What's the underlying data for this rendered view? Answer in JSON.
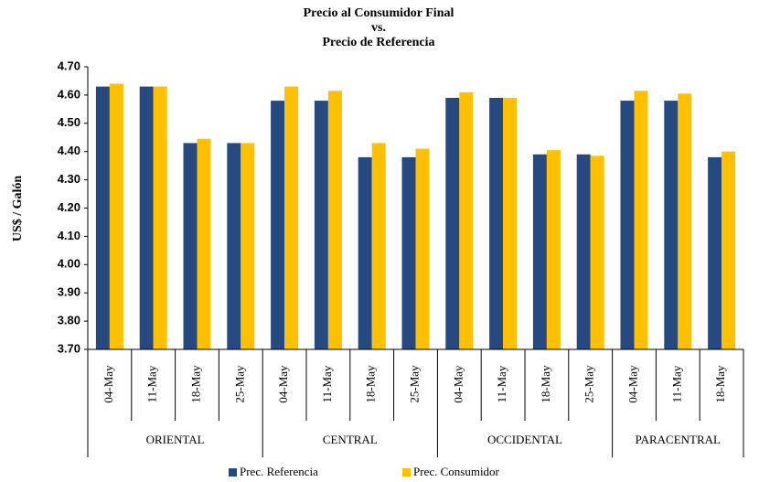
{
  "chart_data": {
    "type": "bar",
    "title": [
      "Precio al Consumidor Final",
      "vs.",
      "Precio de Referencia"
    ],
    "y_label": "US$ / Galón",
    "categories": [
      "04-May",
      "11-May",
      "18-May",
      "25-May",
      "04-May",
      "11-May",
      "18-May",
      "25-May",
      "04-May",
      "11-May",
      "18-May",
      "25-May",
      "04-May",
      "11-May",
      "18-May"
    ],
    "groups": [
      {
        "name": "ORIENTAL",
        "size": 4
      },
      {
        "name": "CENTRAL",
        "size": 4
      },
      {
        "name": "OCCIDENTAL",
        "size": 4
      },
      {
        "name": "PARACENTRAL",
        "size": 3
      }
    ],
    "series": [
      {
        "name": "Prec. Referencia",
        "color": "#264a7f",
        "values": [
          4.63,
          4.63,
          4.43,
          4.43,
          4.58,
          4.58,
          4.38,
          4.38,
          4.59,
          4.59,
          4.39,
          4.39,
          4.58,
          4.58,
          4.38
        ]
      },
      {
        "name": "Prec. Consumidor",
        "color": "#ffc000",
        "values": [
          4.64,
          4.63,
          4.445,
          4.43,
          4.63,
          4.615,
          4.43,
          4.41,
          4.61,
          4.59,
          4.405,
          4.385,
          4.615,
          4.605,
          4.4
        ]
      }
    ],
    "ylim": [
      3.7,
      4.7
    ],
    "yticks": [
      {
        "value": 3.7,
        "label": "3.70"
      },
      {
        "value": 3.8,
        "label": "3.80"
      },
      {
        "value": 3.9,
        "label": "3.90"
      },
      {
        "value": 4.0,
        "label": "4.00"
      },
      {
        "value": 4.1,
        "label": "4.10"
      },
      {
        "value": 4.2,
        "label": "4.20"
      },
      {
        "value": 4.3,
        "label": "4.30"
      },
      {
        "value": 4.4,
        "label": "4.40"
      },
      {
        "value": 4.5,
        "label": "4.50"
      },
      {
        "value": 4.6,
        "label": "4.60"
      },
      {
        "value": 4.7,
        "label": "4.70"
      }
    ],
    "legend": "bottom"
  }
}
